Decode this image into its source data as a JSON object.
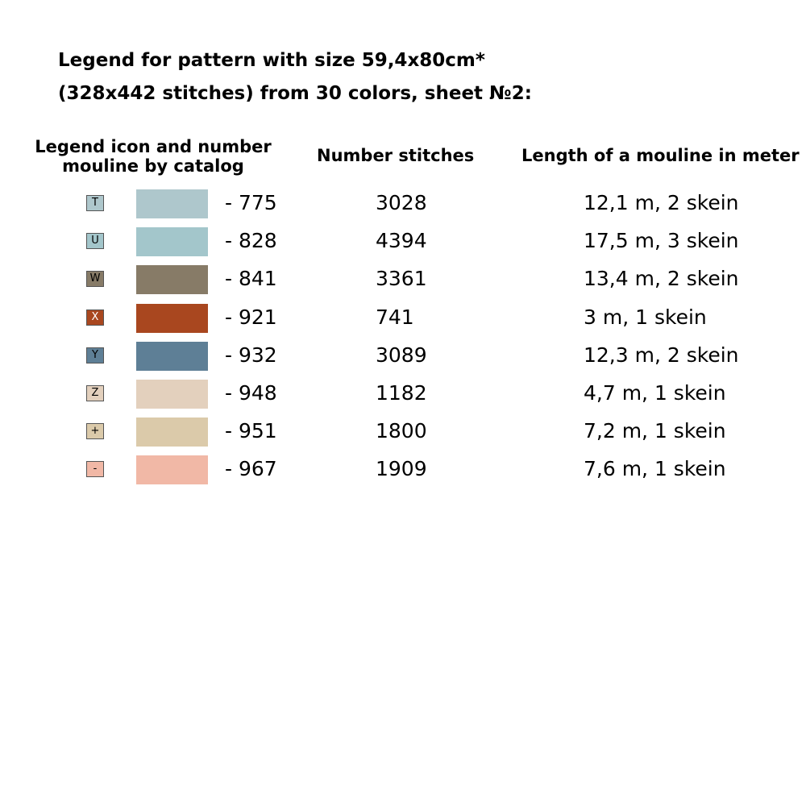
{
  "title": {
    "line1": "Legend for pattern with size 59,4x80cm*",
    "line2": "(328x442 stitches) from 30 colors, sheet №2:"
  },
  "headers": {
    "icon_line1": "Legend icon and number",
    "icon_line2": "mouline by catalog",
    "stitches": "Number stitches",
    "length": "Length of a mouline in meter"
  },
  "rows": [
    {
      "symbol": "T",
      "swatch_color": "#aec7cc",
      "symbol_text_color": "#000000",
      "number": "- 775",
      "stitches": "3028",
      "length": "12,1 m, 2 skein"
    },
    {
      "symbol": "U",
      "swatch_color": "#a3c6cb",
      "symbol_text_color": "#000000",
      "number": "- 828",
      "stitches": "4394",
      "length": "17,5 m, 3 skein"
    },
    {
      "symbol": "W",
      "swatch_color": "#877b67",
      "symbol_text_color": "#000000",
      "number": "- 841",
      "stitches": "3361",
      "length": "13,4 m, 2 skein"
    },
    {
      "symbol": "X",
      "swatch_color": "#a9471f",
      "symbol_text_color": "#ffffff",
      "number": "- 921",
      "stitches": "741",
      "length": "3 m, 1 skein"
    },
    {
      "symbol": "Y",
      "swatch_color": "#5e7f96",
      "symbol_text_color": "#000000",
      "number": "- 932",
      "stitches": "3089",
      "length": "12,3 m, 2 skein"
    },
    {
      "symbol": "Z",
      "swatch_color": "#e3d0bd",
      "symbol_text_color": "#000000",
      "number": "- 948",
      "stitches": "1182",
      "length": "4,7 m, 1 skein"
    },
    {
      "symbol": "+",
      "swatch_color": "#dbcaaa",
      "symbol_text_color": "#000000",
      "number": "- 951",
      "stitches": "1800",
      "length": "7,2 m, 1 skein"
    },
    {
      "symbol": "-",
      "swatch_color": "#f1b8a6",
      "symbol_text_color": "#000000",
      "number": "- 967",
      "stitches": "1909",
      "length": "7,6 m, 1 skein"
    }
  ]
}
